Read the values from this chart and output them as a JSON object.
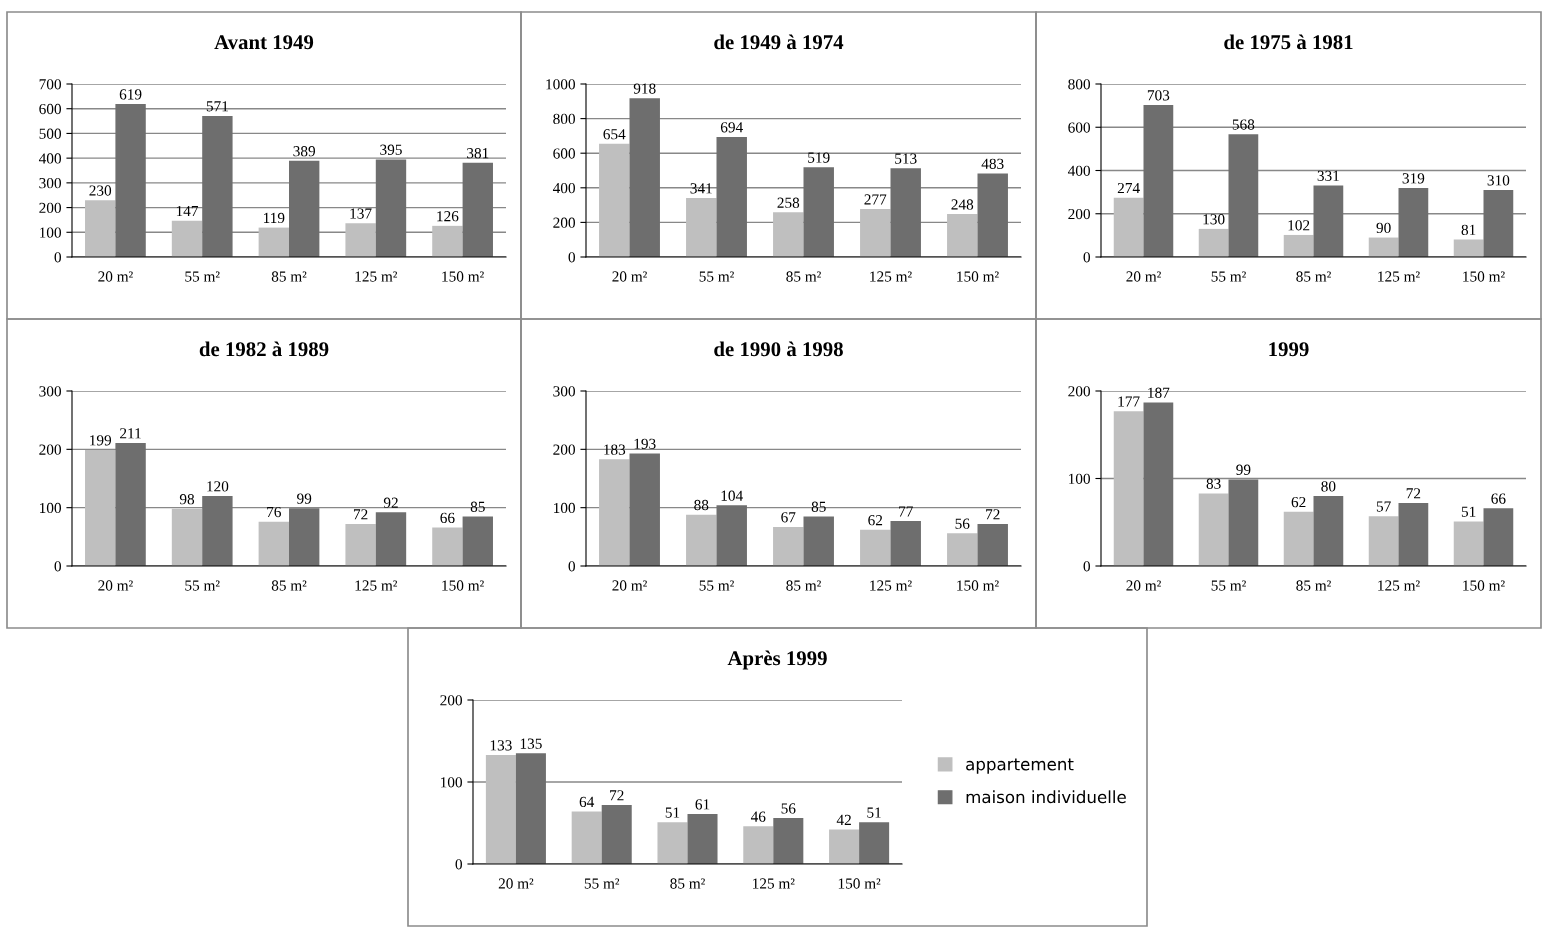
{
  "chart_data": [
    {
      "type": "bar",
      "title": "Avant 1949",
      "categories": [
        "20 m²",
        "55 m²",
        "85 m²",
        "125 m²",
        "150 m²"
      ],
      "ylim": [
        0,
        700
      ],
      "yticks": [
        0,
        100,
        200,
        300,
        400,
        500,
        600,
        700
      ],
      "grid": "y",
      "legend": false,
      "data_labels": true,
      "series": [
        {
          "color": "#bfbfbf",
          "values": [
            230,
            147,
            119,
            137,
            126
          ]
        },
        {
          "color": "#6e6e6e",
          "values": [
            619,
            571,
            389,
            395,
            381
          ]
        }
      ]
    },
    {
      "type": "bar",
      "title": "de 1949 à 1974",
      "categories": [
        "20 m²",
        "55 m²",
        "85 m²",
        "125 m²",
        "150 m²"
      ],
      "ylim": [
        0,
        1000
      ],
      "yticks": [
        0,
        200,
        400,
        600,
        800,
        1000
      ],
      "grid": "y",
      "legend": false,
      "data_labels": true,
      "series": [
        {
          "color": "#bfbfbf",
          "values": [
            654,
            341,
            258,
            277,
            248
          ]
        },
        {
          "color": "#6e6e6e",
          "values": [
            918,
            694,
            519,
            513,
            483
          ]
        }
      ]
    },
    {
      "type": "bar",
      "title": "de 1975 à 1981",
      "categories": [
        "20 m²",
        "55 m²",
        "85 m²",
        "125 m²",
        "150 m²"
      ],
      "ylim": [
        0,
        800
      ],
      "yticks": [
        0,
        200,
        400,
        600,
        800
      ],
      "grid": "y",
      "legend": false,
      "data_labels": true,
      "series": [
        {
          "color": "#bfbfbf",
          "values": [
            274,
            130,
            102,
            90,
            81
          ]
        },
        {
          "color": "#6e6e6e",
          "values": [
            703,
            568,
            331,
            319,
            310
          ]
        }
      ]
    },
    {
      "type": "bar",
      "title": "de 1982 à 1989",
      "categories": [
        "20 m²",
        "55 m²",
        "85 m²",
        "125 m²",
        "150 m²"
      ],
      "ylim": [
        0,
        300
      ],
      "yticks": [
        0,
        100,
        200,
        300
      ],
      "grid": "y",
      "legend": false,
      "data_labels": true,
      "series": [
        {
          "color": "#bfbfbf",
          "values": [
            199,
            98,
            76,
            72,
            66
          ]
        },
        {
          "color": "#6e6e6e",
          "values": [
            211,
            120,
            99,
            92,
            85
          ]
        }
      ]
    },
    {
      "type": "bar",
      "title": "de 1990 à 1998",
      "categories": [
        "20 m²",
        "55 m²",
        "85 m²",
        "125 m²",
        "150 m²"
      ],
      "ylim": [
        0,
        300
      ],
      "yticks": [
        0,
        100,
        200,
        300
      ],
      "grid": "y",
      "legend": false,
      "data_labels": true,
      "series": [
        {
          "color": "#bfbfbf",
          "values": [
            183,
            88,
            67,
            62,
            56
          ]
        },
        {
          "color": "#6e6e6e",
          "values": [
            193,
            104,
            85,
            77,
            72
          ]
        }
      ]
    },
    {
      "type": "bar",
      "title": "1999",
      "categories": [
        "20 m²",
        "55 m²",
        "85 m²",
        "125 m²",
        "150 m²"
      ],
      "ylim": [
        0,
        200
      ],
      "yticks": [
        0,
        100,
        200
      ],
      "grid": "y",
      "legend": false,
      "data_labels": true,
      "series": [
        {
          "color": "#bfbfbf",
          "values": [
            177,
            83,
            62,
            57,
            51
          ]
        },
        {
          "color": "#6e6e6e",
          "values": [
            187,
            99,
            80,
            72,
            66
          ]
        }
      ]
    },
    {
      "type": "bar",
      "title": "Après 1999",
      "categories": [
        "20 m²",
        "55 m²",
        "85 m²",
        "125 m²",
        "150 m²"
      ],
      "ylim": [
        0,
        200
      ],
      "yticks": [
        0,
        100,
        200
      ],
      "grid": "y",
      "legend": "right",
      "data_labels": true,
      "series": [
        {
          "name": "appartement",
          "color": "#bfbfbf",
          "values": [
            133,
            64,
            51,
            46,
            42
          ]
        },
        {
          "name": "maison individuelle",
          "color": "#6e6e6e",
          "values": [
            135,
            72,
            61,
            56,
            51
          ]
        }
      ]
    }
  ]
}
